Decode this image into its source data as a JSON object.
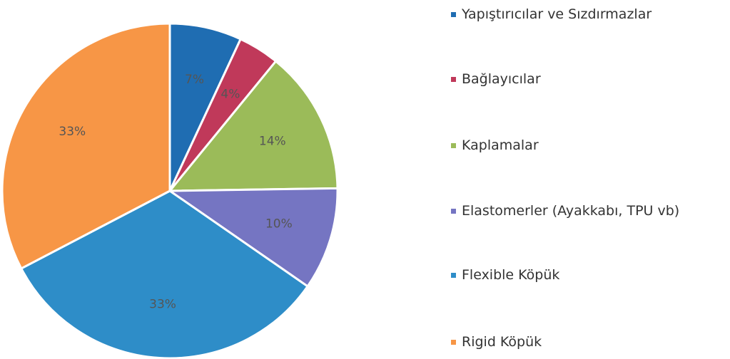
{
  "chart_data": {
    "type": "pie",
    "categories": [
      "Yapıştırıcılar ve Sızdırmazlar",
      "Bağlayıcılar",
      "Kaplamalar",
      "Elastomerler (Ayakkabı, TPU vb)",
      "Flexible Köpük",
      "Rigid Köpük"
    ],
    "values": [
      7,
      4,
      14,
      10,
      33,
      33
    ],
    "value_labels": [
      "7%",
      "4%",
      "14%",
      "10%",
      "33%",
      "33%"
    ],
    "colors": [
      "#1f6db2",
      "#c0395a",
      "#9bbb59",
      "#7575c2",
      "#2e8dc8",
      "#f79646"
    ]
  }
}
